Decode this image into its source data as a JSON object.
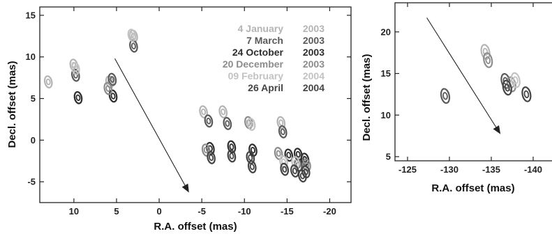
{
  "colors": {
    "4 January 2003": "#b4b4b4",
    "7 March 2003": "#5a5a5a",
    "24 October 2003": "#2e2e2e",
    "20 December 2003": "#8c8c8c",
    "09 February 2004": "#c2c2c2",
    "26 April 2004": "#444444"
  },
  "chart_data": [
    {
      "type": "scatter",
      "xlabel": "R.A. offset (mas)",
      "ylabel": "Decl. offset (mas)",
      "xlim": [
        14,
        -22.5
      ],
      "ylim": [
        -7.5,
        16
      ],
      "xticks": [
        {
          "v": 10,
          "label": "10"
        },
        {
          "v": 5,
          "label": "5"
        },
        {
          "v": 0,
          "label": "0"
        },
        {
          "v": -5,
          "label": "-5"
        },
        {
          "v": -10,
          "label": "-10"
        },
        {
          "v": -15,
          "label": "-15"
        },
        {
          "v": -20,
          "label": "-20"
        }
      ],
      "yticks": [
        {
          "v": 15,
          "label": "15"
        },
        {
          "v": 10,
          "label": "10"
        },
        {
          "v": 5,
          "label": "5"
        },
        {
          "v": 0,
          "label": "0"
        },
        {
          "v": -5,
          "label": "-5"
        }
      ],
      "legend": [
        {
          "date": "4 January",
          "year": "2003"
        },
        {
          "date": "7 March",
          "year": "2003"
        },
        {
          "date": "24 October",
          "year": "2003"
        },
        {
          "date": "20 December",
          "year": "2003"
        },
        {
          "date": "09 February",
          "year": "2004"
        },
        {
          "date": "26 April",
          "year": "2004"
        }
      ],
      "arrow": {
        "from": [
          5.2,
          9.8
        ],
        "to": [
          -3.5,
          -6.3
        ]
      },
      "series": [
        {
          "name": "4 January 2003",
          "points": [
            [
              13,
              7
            ],
            [
              10,
              9
            ],
            [
              5.8,
              7
            ],
            [
              3,
              12.5
            ],
            [
              -5.2,
              3.4
            ],
            [
              -7.5,
              3.4
            ],
            [
              -14.3,
              2.1
            ],
            [
              -16.8,
              -2.5
            ]
          ]
        },
        {
          "name": "7 March 2003",
          "points": [
            [
              9.8,
              7.8
            ],
            [
              5.5,
              7.3
            ],
            [
              3,
              11.3
            ],
            [
              -5.8,
              2.3
            ],
            [
              -8,
              2
            ],
            [
              -14.5,
              1
            ],
            [
              -16.3,
              -3
            ]
          ]
        },
        {
          "name": "24 October 2003",
          "points": [
            [
              9.5,
              5.1
            ],
            [
              5.4,
              5.3
            ],
            [
              -6,
              -1
            ],
            [
              -8.5,
              -0.8
            ],
            [
              -11,
              -1.2
            ],
            [
              -15.2,
              -1.8
            ],
            [
              -16.3,
              -1.7
            ],
            [
              -17.1,
              -2.3
            ]
          ]
        },
        {
          "name": "20 December 2003",
          "points": [
            [
              6,
              6.2
            ],
            [
              -5.5,
              -1.2
            ],
            [
              -10.5,
              2.1
            ],
            [
              -14,
              -1.6
            ],
            [
              -17.3,
              -3
            ]
          ]
        },
        {
          "name": "09 February 2004",
          "points": [
            [
              9.8,
              8.6
            ],
            [
              3.2,
              12.6
            ],
            [
              -10.8,
              1.9
            ],
            [
              -14.6,
              -2.6
            ],
            [
              -16,
              -2.7
            ]
          ]
        },
        {
          "name": "26 April 2004",
          "points": [
            [
              -6.1,
              -2.1
            ],
            [
              -8.5,
              -1.9
            ],
            [
              -10.7,
              -2.1
            ],
            [
              -10.9,
              -3.2
            ],
            [
              -14.7,
              -3.5
            ],
            [
              -15.9,
              -3.7
            ],
            [
              -17.2,
              -3.8
            ],
            [
              -16.8,
              -4.3
            ]
          ]
        }
      ]
    },
    {
      "type": "scatter",
      "xlabel": "R.A. offset (mas)",
      "ylabel": "Decl. offset (mas)",
      "xlim": [
        -123.5,
        -143.5
      ],
      "ylim": [
        4.5,
        23.5
      ],
      "xticks": [
        {
          "v": -125,
          "label": "-125"
        },
        {
          "v": -130,
          "label": "-130"
        },
        {
          "v": -135,
          "label": "-135"
        },
        {
          "v": -140,
          "label": "-140"
        }
      ],
      "yticks": [
        {
          "v": 20,
          "label": "20"
        },
        {
          "v": 15,
          "label": "15"
        },
        {
          "v": 10,
          "label": "10"
        },
        {
          "v": 5,
          "label": "5"
        }
      ],
      "arrow": {
        "from": [
          -127.3,
          21.7
        ],
        "to": [
          -136.1,
          7.7
        ]
      },
      "series": [
        {
          "name": "4 January 2003",
          "points": [
            [
              -134.3,
              17.6
            ]
          ]
        },
        {
          "name": "7 March 2003",
          "points": [
            [
              -129.5,
              12.3
            ],
            [
              -136.7,
              14.1
            ]
          ]
        },
        {
          "name": "20 December 2003",
          "points": [
            [
              -134.6,
              16.6
            ],
            [
              -137.4,
              13.7
            ]
          ]
        },
        {
          "name": "09 February 2004",
          "points": [
            [
              -137.9,
              14.2
            ]
          ]
        },
        {
          "name": "26 April 2004",
          "points": [
            [
              -136.9,
              13.3
            ],
            [
              -139.2,
              12.5
            ]
          ]
        }
      ]
    }
  ]
}
